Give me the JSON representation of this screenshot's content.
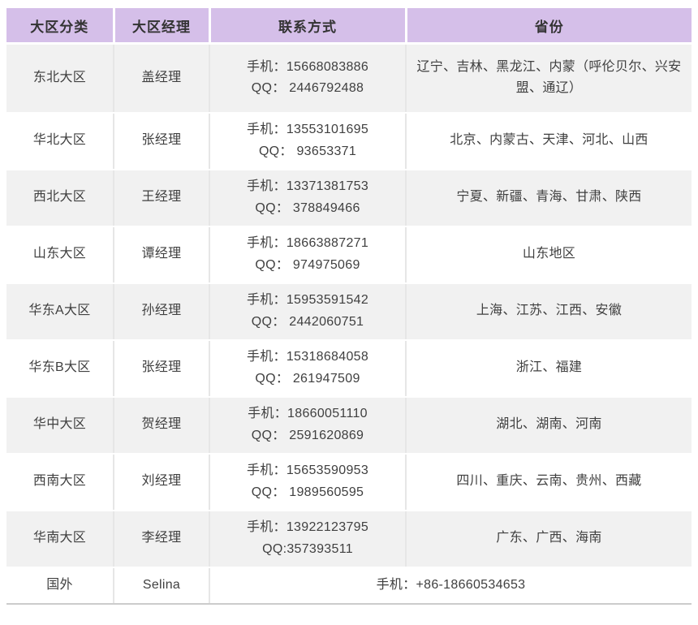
{
  "table": {
    "headers": [
      "大区分类",
      "大区经理",
      "联系方式",
      "省份"
    ],
    "rows": [
      {
        "region": "东北大区",
        "manager": "盖经理",
        "phone": "手机：15668083886",
        "qq": "QQ： 2446792488",
        "provinces": "辽宁、吉林、黑龙江、内蒙（呼伦贝尔、兴安盟、通辽）",
        "tall": true
      },
      {
        "region": "华北大区",
        "manager": "张经理",
        "phone": "手机：13553101695",
        "qq": "QQ： 93653371",
        "provinces": "北京、内蒙古、天津、河北、山西"
      },
      {
        "region": "西北大区",
        "manager": "王经理",
        "phone": "手机：13371381753",
        "qq": "QQ： 378849466",
        "provinces": "宁夏、新疆、青海、甘肃、陕西"
      },
      {
        "region": "山东大区",
        "manager": "谭经理",
        "phone": "手机：18663887271",
        "qq": "QQ： 974975069",
        "provinces": "山东地区"
      },
      {
        "region": "华东A大区",
        "manager": "孙经理",
        "phone": "手机：15953591542",
        "qq": "QQ： 2442060751",
        "provinces": "上海、江苏、江西、安徽"
      },
      {
        "region": "华东B大区",
        "manager": "张经理",
        "phone": "手机：15318684058",
        "qq": "QQ： 261947509",
        "provinces": "浙江、福建"
      },
      {
        "region": "华中大区",
        "manager": "贺经理",
        "phone": "手机：18660051110",
        "qq": "QQ： 2591620869",
        "provinces": "湖北、湖南、河南"
      },
      {
        "region": "西南大区",
        "manager": "刘经理",
        "phone": "手机：15653590953",
        "qq": "QQ： 1989560595",
        "provinces": "四川、重庆、云南、贵州、西藏"
      },
      {
        "region": "华南大区",
        "manager": "李经理",
        "phone": "手机：13922123795",
        "qq": "QQ:357393511",
        "provinces": "广东、广西、海南"
      },
      {
        "region": "国外",
        "manager": "Selina",
        "phone": "手机：+86-18660534653",
        "qq": "",
        "provinces": null,
        "span_contact": true,
        "compact": true
      }
    ],
    "colors": {
      "header_bg": "#d5bfe9",
      "header_text": "#333333",
      "row_alt_bg": "#f1f1f1",
      "row_bg": "#ffffff",
      "body_text": "#404040",
      "divider": "#e6e6e6",
      "bottom_border": "#cccccc"
    }
  }
}
